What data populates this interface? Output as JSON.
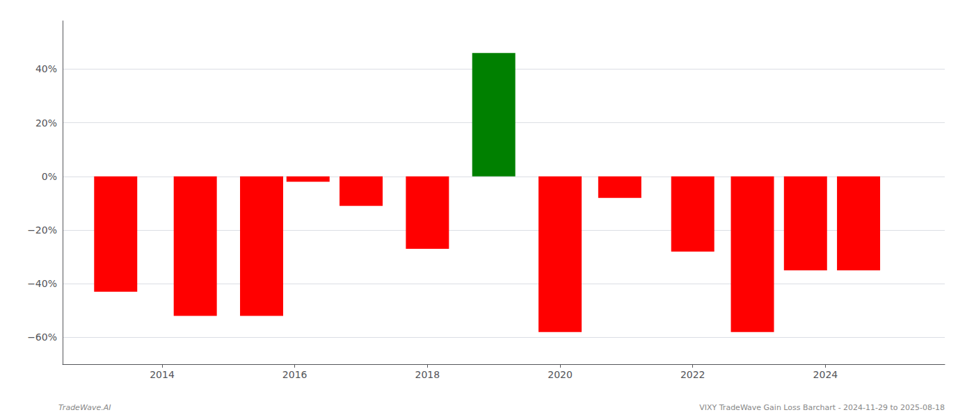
{
  "chart_data": {
    "type": "bar",
    "x": [
      2013.3,
      2014.5,
      2015.5,
      2016.2,
      2017.0,
      2018.0,
      2019.0,
      2020.0,
      2020.9,
      2022.0,
      2022.9,
      2023.7,
      2024.5
    ],
    "values": [
      -43,
      -52,
      -52,
      -2,
      -11,
      -27,
      46,
      -58,
      -8,
      -28,
      -58,
      -35,
      -35
    ],
    "colors": [
      "#ff0000",
      "#ff0000",
      "#ff0000",
      "#ff0000",
      "#ff0000",
      "#ff0000",
      "#008000",
      "#ff0000",
      "#ff0000",
      "#ff0000",
      "#ff0000",
      "#ff0000",
      "#ff0000"
    ],
    "xlim": [
      2012.5,
      2025.8
    ],
    "xticks": [
      2014,
      2016,
      2018,
      2020,
      2022,
      2024
    ],
    "ylim": [
      -70,
      58
    ],
    "yticks": [
      {
        "value": -60,
        "label": "−60%"
      },
      {
        "value": -40,
        "label": "−40%"
      },
      {
        "value": -20,
        "label": "−20%"
      },
      {
        "value": 0,
        "label": "0%"
      },
      {
        "value": 20,
        "label": "20%"
      },
      {
        "value": 40,
        "label": "40%"
      }
    ],
    "grid": true,
    "annotations": [
      "TradeWave.AI",
      "VIXY TradeWave Gain Loss Barchart - 2024-11-29 to 2025-08-18"
    ]
  }
}
